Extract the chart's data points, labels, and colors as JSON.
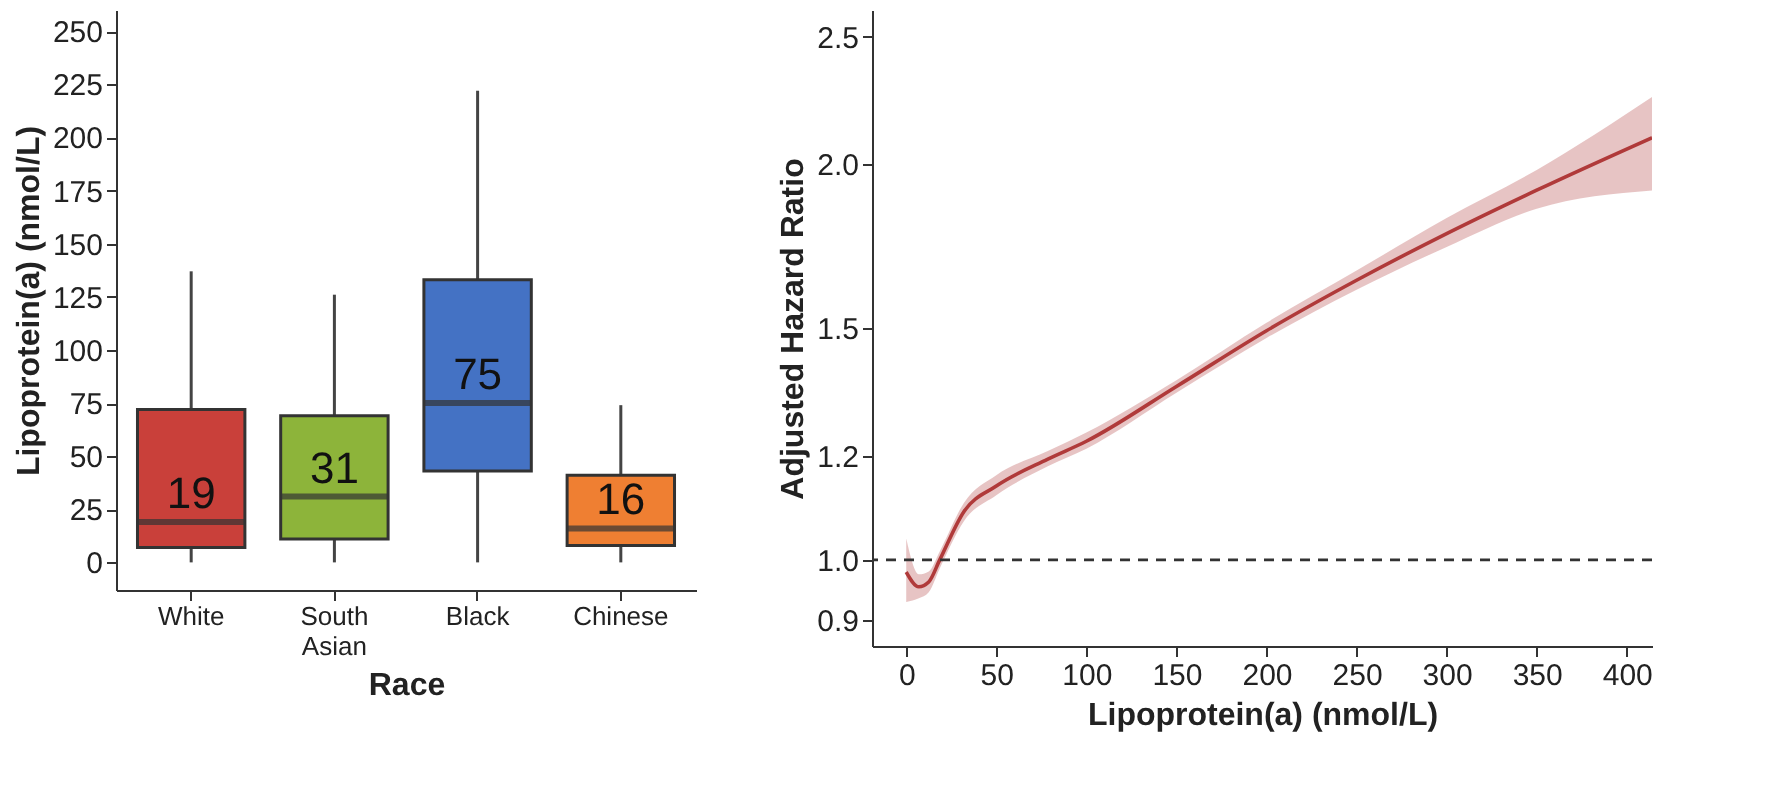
{
  "chart_data": [
    {
      "type": "box",
      "xlabel": "Race",
      "ylabel": "Lipoprotein(a) (nmol/L)",
      "categories": [
        "White",
        "South Asian",
        "Black",
        "Chinese"
      ],
      "colors": [
        "#c9403a",
        "#8db43a",
        "#4472c4",
        "#ef7f32"
      ],
      "boxes": [
        {
          "low": 0,
          "q1": 7,
          "median": 19,
          "q3": 72,
          "high": 137
        },
        {
          "low": 0,
          "q1": 11,
          "median": 31,
          "q3": 69,
          "high": 126
        },
        {
          "low": 0,
          "q1": 43,
          "median": 75,
          "q3": 133,
          "high": 222
        },
        {
          "low": 0,
          "q1": 8,
          "median": 16,
          "q3": 41,
          "high": 74
        }
      ],
      "value_labels": [
        "19",
        "31",
        "75",
        "16"
      ],
      "ylim": [
        -13,
        260
      ],
      "yticks": [
        0,
        25,
        50,
        75,
        100,
        125,
        150,
        175,
        200,
        225,
        250
      ],
      "grid": false
    },
    {
      "type": "line",
      "xlabel": "Lipoprotein(a) (nmol/L)",
      "ylabel": "Adjusted Hazard Ratio",
      "log": "y",
      "grid": false,
      "x": [
        0,
        7,
        12.5,
        18.6,
        32,
        50,
        78.6,
        100,
        150,
        200,
        250,
        300,
        350,
        414
      ],
      "series": [
        {
          "color": "#b03a3a",
          "values": [
            0.979,
            0.954,
            0.962,
            1.0,
            1.088,
            1.138,
            1.193,
            1.231,
            1.355,
            1.494,
            1.632,
            1.771,
            1.911,
            2.095
          ],
          "lower": [
            0.929,
            0.935,
            0.945,
            0.985,
            1.07,
            1.12,
            1.178,
            1.215,
            1.34,
            1.475,
            1.605,
            1.73,
            1.85,
            1.91
          ],
          "upper": [
            1.038,
            0.975,
            0.98,
            1.015,
            1.105,
            1.16,
            1.21,
            1.25,
            1.37,
            1.515,
            1.66,
            1.82,
            1.98,
            2.25
          ]
        }
      ],
      "xlim": [
        -19,
        414
      ],
      "xticks": [
        0,
        50,
        100,
        150,
        200,
        250,
        300,
        350,
        400
      ],
      "ylim": [
        0.86,
        2.62
      ],
      "yticks": [
        0.9,
        {
          "value": 1.0,
          "label": "1.0"
        },
        1.2,
        1.5,
        {
          "value": 2.0,
          "label": "2.0"
        },
        2.5
      ],
      "ref_lines": [
        {
          "axis": "y",
          "value": 1.0,
          "line_style": "dashed",
          "color": "#333333"
        }
      ]
    }
  ]
}
